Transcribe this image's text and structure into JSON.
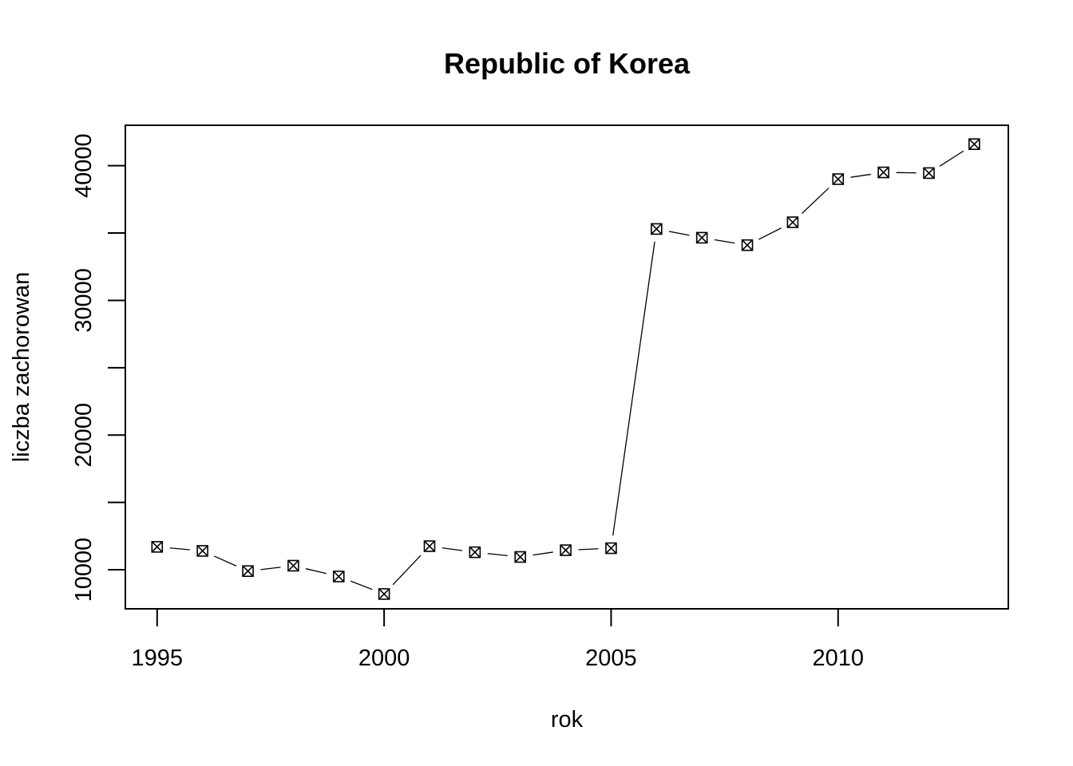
{
  "chart_data": {
    "type": "line",
    "title": "Republic of Korea",
    "xlabel": "rok",
    "ylabel": "liczba zachorowan",
    "x": [
      1995,
      1996,
      1997,
      1998,
      1999,
      2000,
      2001,
      2002,
      2003,
      2004,
      2005,
      2006,
      2007,
      2008,
      2009,
      2010,
      2011,
      2012,
      2013
    ],
    "series": [
      {
        "values": [
          11700,
          11400,
          9900,
          10300,
          9500,
          8200,
          11750,
          11300,
          10950,
          11450,
          11600,
          35300,
          34650,
          34100,
          35800,
          39000,
          39500,
          39450,
          41600
        ]
      }
    ],
    "xlim": [
      1994.3,
      2013.75
    ],
    "ylim": [
      7100,
      43000
    ],
    "xticks": [
      1995,
      2000,
      2005,
      2010
    ],
    "yticks": [
      10000,
      15000,
      20000,
      25000,
      30000,
      35000,
      40000
    ],
    "ytick_labels_shown": [
      10000,
      20000,
      30000,
      40000
    ],
    "marker": "boxed-x",
    "line_style": "overplotted points and lines",
    "grid": false,
    "legend": "none"
  }
}
